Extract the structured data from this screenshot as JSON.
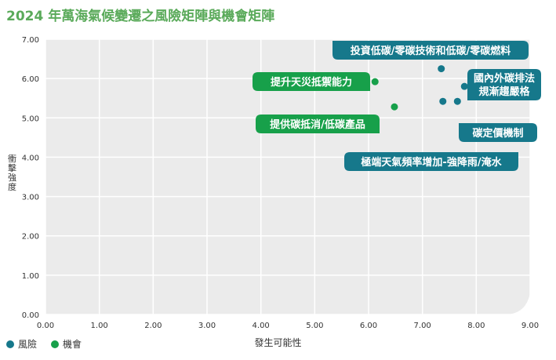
{
  "title": "2024 年萬海氣候變遷之風險矩陣與機會矩陣",
  "colors": {
    "title": "#5aaa5a",
    "risk": "#16788b",
    "opportunity": "#17a04a",
    "grid": "#ffffff",
    "plot_bg": "#ebebeb"
  },
  "legend": [
    {
      "label": "風險",
      "color": "#16788b"
    },
    {
      "label": "機會",
      "color": "#17a04a"
    }
  ],
  "chart_data": {
    "type": "scatter",
    "title": "2024 年萬海氣候變遷之風險矩陣與機會矩陣",
    "xlabel": "發生可能性",
    "ylabel": "衝擊強度",
    "xlim": [
      0,
      9
    ],
    "ylim": [
      0,
      7
    ],
    "x_ticks": [
      "0.00",
      "1.00",
      "2.00",
      "3.00",
      "4.00",
      "5.00",
      "6.00",
      "7.00",
      "8.00",
      "9.00"
    ],
    "y_ticks": [
      "0.00",
      "1.00",
      "2.00",
      "3.00",
      "4.00",
      "5.00",
      "6.00",
      "7.00"
    ],
    "grid": true,
    "legend_position": "bottom-left",
    "series": [
      {
        "name": "風險",
        "color": "#16788b",
        "points": [
          {
            "x": 7.35,
            "y": 6.25,
            "label": "投資低碳/零碳技術和低碳/零碳燃料"
          },
          {
            "x": 7.78,
            "y": 5.8,
            "label": "國內外碳排法規漸趨嚴格"
          },
          {
            "x": 7.65,
            "y": 5.42,
            "label": "碳定價機制"
          },
          {
            "x": 7.38,
            "y": 5.42,
            "label": "極端天氣頻率增加-強降雨/淹水"
          }
        ]
      },
      {
        "name": "機會",
        "color": "#17a04a",
        "points": [
          {
            "x": 6.12,
            "y": 5.92,
            "label": "提升天災抵禦能力"
          },
          {
            "x": 6.48,
            "y": 5.28,
            "label": "提供碳抵消/低碳產品"
          }
        ]
      }
    ]
  }
}
